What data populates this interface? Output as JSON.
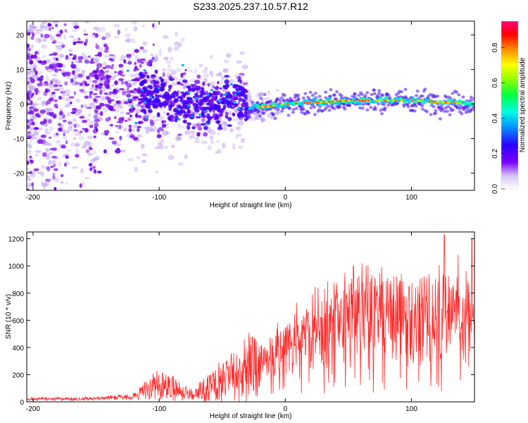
{
  "title": "S233.2025.237.10.57.R12",
  "chart_data": [
    {
      "type": "heatmap",
      "xlabel": "Height of straight line (km)",
      "ylabel": "Frequency (Hz)",
      "xlim": [
        -205,
        150
      ],
      "ylim": [
        -25,
        24
      ],
      "xticks": [
        -200,
        -100,
        0,
        100
      ],
      "yticks": [
        -20,
        -10,
        0,
        10,
        20
      ],
      "ridge": {
        "description_points_x": [
          -130,
          -100,
          -70,
          -50,
          -35,
          -30,
          -20,
          0,
          50,
          100,
          150
        ],
        "center_hz": [
          4,
          2,
          0,
          0,
          2,
          -1,
          -1,
          0,
          1,
          1,
          0
        ]
      },
      "colorbar": {
        "label": "Normalized spectral amplitude",
        "range": [
          0.0,
          0.95
        ],
        "ticks": [
          "0.0",
          "0.2",
          "0.4",
          "0.6",
          "0.8"
        ]
      }
    },
    {
      "type": "line",
      "xlabel": "Height of straight line (km)",
      "ylabel": "SNR (10 * v/v)",
      "xlim": [
        -205,
        150
      ],
      "ylim": [
        0,
        1250
      ],
      "xticks": [
        -200,
        -100,
        0,
        100
      ],
      "yticks": [
        0,
        200,
        400,
        600,
        800,
        1000,
        1200
      ],
      "series": [
        {
          "name": "SNR",
          "color": "#ff2a2a",
          "trend_x": [
            -205,
            -150,
            -120,
            -100,
            -90,
            -80,
            -70,
            -60,
            -50,
            -40,
            -30,
            -20,
            0,
            20,
            40,
            60,
            80,
            100,
            120,
            140,
            150
          ],
          "trend_y": [
            20,
            25,
            40,
            130,
            110,
            60,
            70,
            110,
            150,
            200,
            240,
            280,
            380,
            500,
            580,
            620,
            620,
            600,
            620,
            640,
            600
          ],
          "peaks": [
            {
              "x": 54,
              "y": 1000
            },
            {
              "x": 126,
              "y": 1230
            },
            {
              "x": 148,
              "y": 1200
            }
          ]
        }
      ]
    }
  ],
  "colors": {
    "scatter_purple": "#5a00e6",
    "snr_red": "#ff2a2a"
  }
}
